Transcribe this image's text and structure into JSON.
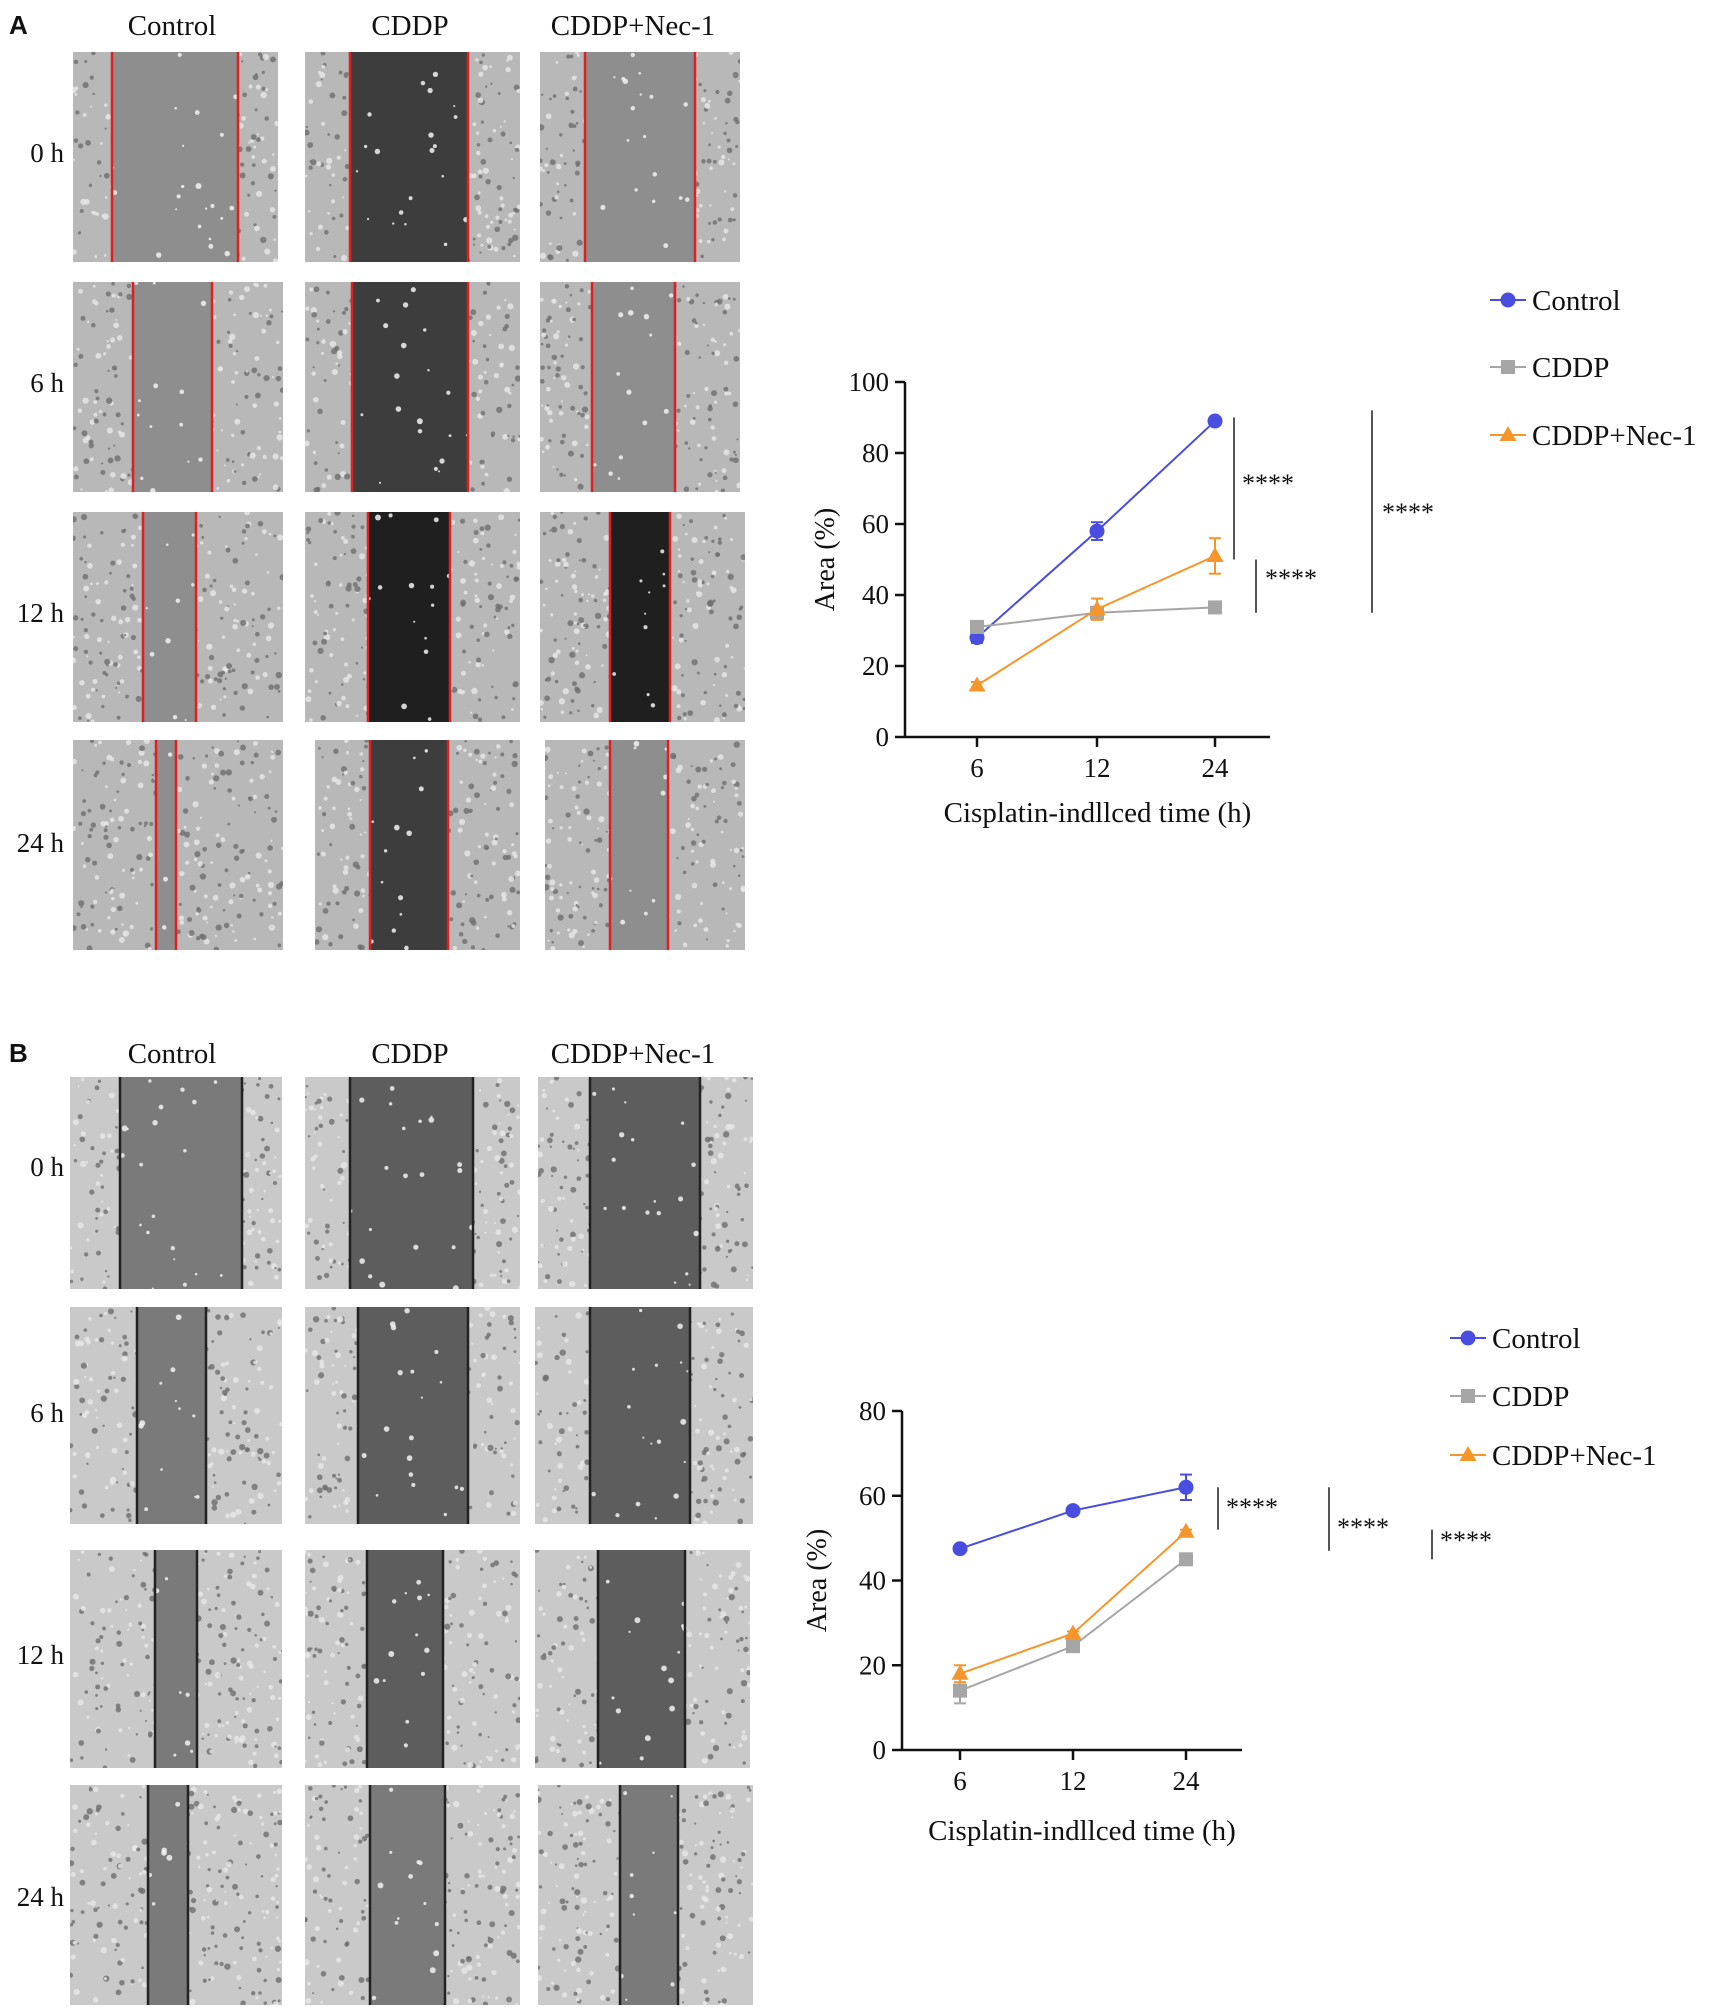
{
  "panels": {
    "A": {
      "letter": "A",
      "columns": [
        "Control",
        "CDDP",
        "CDDP+Nec-1"
      ],
      "rows": [
        "0 h",
        "6 h",
        "12 h",
        "24 h"
      ]
    },
    "B": {
      "letter": "B",
      "columns": [
        "Control",
        "CDDP",
        "CDDP+Nec-1"
      ],
      "rows": [
        "0 h",
        "6 h",
        "12 h",
        "24 h"
      ]
    }
  },
  "chart_data": [
    {
      "type": "line",
      "panel": "A",
      "categories": [
        "6",
        "12",
        "24"
      ],
      "xlabel": "Cisplatin-indllced time (h)",
      "ylabel": "Area (%)",
      "ylim": [
        0,
        100
      ],
      "yticks": [
        0,
        20,
        40,
        60,
        80,
        100
      ],
      "legend_position": "top-right",
      "series": [
        {
          "name": "Control",
          "values": [
            28,
            58,
            89
          ],
          "errors": [
            1.5,
            2.5,
            1
          ],
          "color": "#4a4ee0",
          "marker": "circle"
        },
        {
          "name": "CDDP",
          "values": [
            31,
            35,
            36.5
          ],
          "errors": [
            1.5,
            1.5,
            1
          ],
          "color": "#a6a6a6",
          "marker": "square"
        },
        {
          "name": "CDDP+Nec-1",
          "values": [
            14.5,
            36,
            51
          ],
          "errors": [
            1,
            3,
            5
          ],
          "color": "#f5962a",
          "marker": "triangle"
        }
      ],
      "annotations": [
        {
          "text": "****",
          "y_range": [
            50,
            90
          ]
        },
        {
          "text": "****",
          "y_range": [
            35,
            50
          ]
        },
        {
          "text": "****",
          "y_range": [
            35,
            92
          ]
        }
      ]
    },
    {
      "type": "line",
      "panel": "B",
      "categories": [
        "6",
        "12",
        "24"
      ],
      "xlabel": "Cisplatin-indllced time (h)",
      "ylabel": "Area (%)",
      "ylim": [
        0,
        80
      ],
      "yticks": [
        0,
        20,
        40,
        60,
        80
      ],
      "legend_position": "top-right",
      "series": [
        {
          "name": "Control",
          "values": [
            47.5,
            56.5,
            62
          ],
          "errors": [
            0.5,
            0.5,
            3
          ],
          "color": "#4a4ee0",
          "marker": "circle"
        },
        {
          "name": "CDDP",
          "values": [
            14,
            24.5,
            45
          ],
          "errors": [
            3,
            1,
            1
          ],
          "color": "#a6a6a6",
          "marker": "square"
        },
        {
          "name": "CDDP+Nec-1",
          "values": [
            18,
            27.5,
            51.5
          ],
          "errors": [
            2,
            0.5,
            0.5
          ],
          "color": "#f5962a",
          "marker": "triangle"
        }
      ],
      "annotations": [
        {
          "text": "****",
          "y_range": [
            52,
            62
          ]
        },
        {
          "text": "****",
          "y_range": [
            47,
            62
          ]
        },
        {
          "text": "****",
          "y_range": [
            45,
            52
          ]
        }
      ]
    }
  ]
}
